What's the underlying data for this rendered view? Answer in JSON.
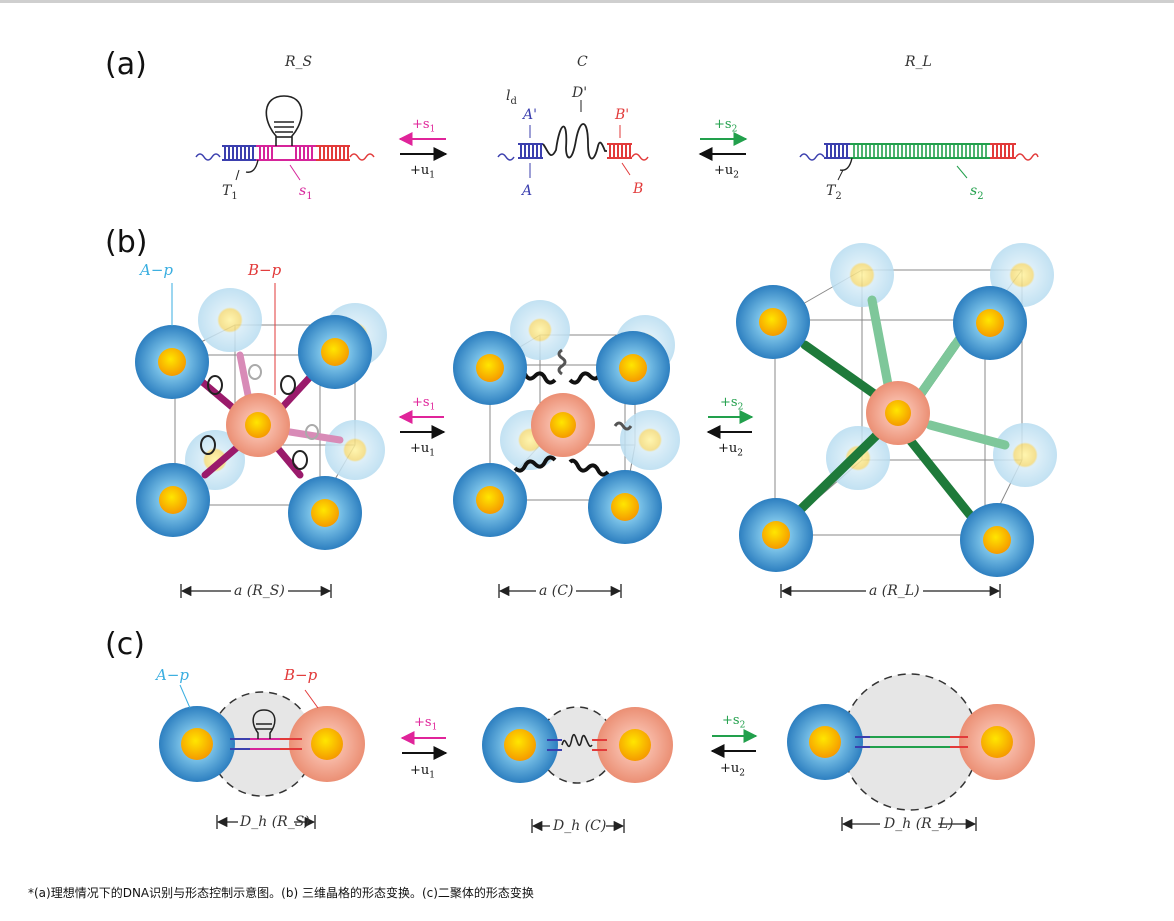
{
  "panels": {
    "a": "(a)",
    "b": "(b)",
    "c": "(c)"
  },
  "panel_a": {
    "state_rs": "R_S",
    "state_c": "C",
    "state_rl": "R_L",
    "T1": "T",
    "T1_sub": "1",
    "s1": "s",
    "s1_sub": "1",
    "ld": "l",
    "ld_sub": "d",
    "A_prime": "A'",
    "D_prime": "D'",
    "B_prime": "B'",
    "A": "A",
    "B": "B",
    "T2": "T",
    "T2_sub": "2",
    "s2": "s",
    "s2_sub": "2"
  },
  "rates": {
    "plus_s1": "+s",
    "s1_sub": "1",
    "plus_u1": "+u",
    "u1_sub": "1",
    "plus_s2": "+s",
    "s2_sub": "2",
    "plus_u2": "+u",
    "u2_sub": "2"
  },
  "particles": {
    "A_p": "A−p",
    "B_p": "B−p"
  },
  "lattice_dims": {
    "rs": "a (R_S)",
    "c": "a (C)",
    "rl": "a (R_L)"
  },
  "dimer_dims": {
    "rs": "D_h (R_S)",
    "c": "D_h (C)",
    "rl": "D_h (R_L)"
  },
  "caption": "*(a)理想情况下的DNA识别与形态控制示意图。(b) 三维晶格的形态变换。(c)二聚体的形态变换",
  "colors": {
    "blue_strand": "#3b3fae",
    "pink_strand": "#d6249a",
    "red_strand": "#e23a3a",
    "green_strand": "#22a04c",
    "a_particle": "#3a94c9",
    "b_particle": "#ee9078",
    "core": "#f5b400"
  }
}
